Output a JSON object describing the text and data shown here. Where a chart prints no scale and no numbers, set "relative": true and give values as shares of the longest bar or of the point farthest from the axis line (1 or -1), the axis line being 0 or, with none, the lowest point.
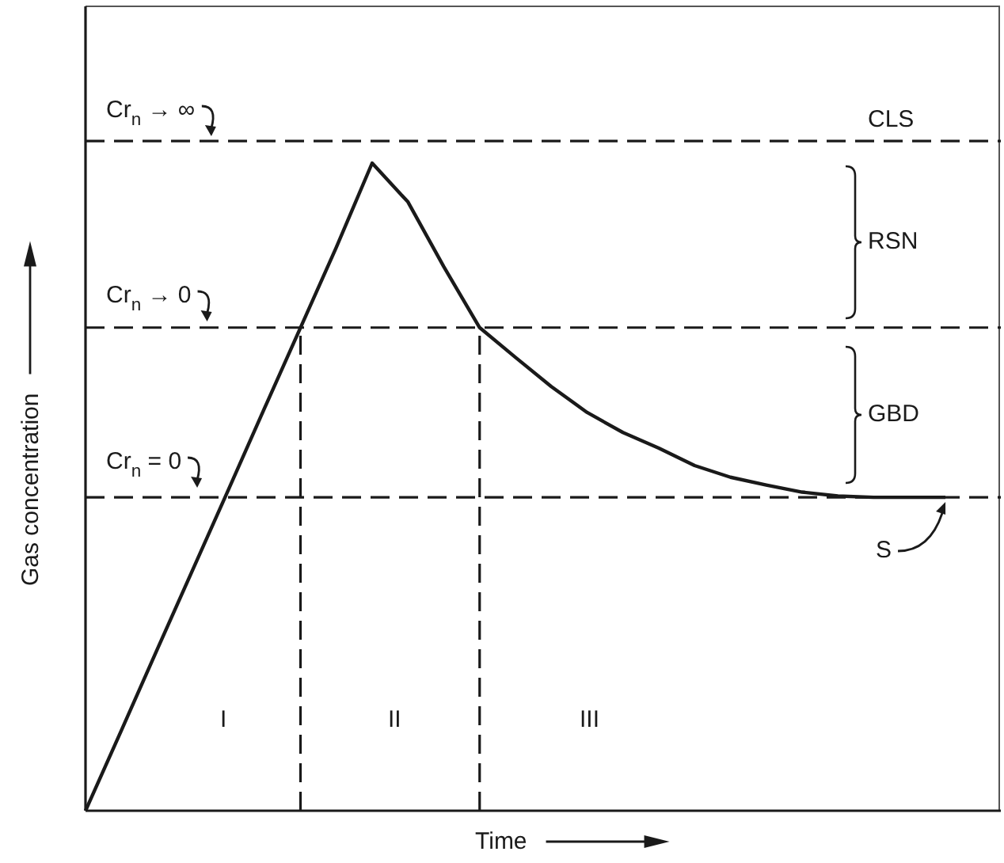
{
  "chart_data": {
    "type": "line",
    "relative": true,
    "xlabel": "Time",
    "ylabel": "Gas concentration",
    "categories": [
      null,
      null,
      null,
      null,
      null,
      null,
      null,
      null,
      null,
      null,
      null,
      null,
      null,
      null,
      null,
      null,
      null,
      null,
      null,
      null,
      null,
      null,
      null,
      null,
      null
    ],
    "series": [
      {
        "color": "#1a1a1a",
        "values": [
          0,
          0.124,
          0.249,
          0.373,
          0.497,
          0.622,
          0.746,
          0.87,
          1,
          0.94,
          0.84,
          0.746,
          0.7,
          0.655,
          0.615,
          0.584,
          0.56,
          0.533,
          0.515,
          0.503,
          0.492,
          0.486,
          0.484,
          0.484,
          0.484
        ]
      }
    ],
    "ref_lines": [
      {
        "axis": "y",
        "value": 1.034,
        "line_style": "dashed",
        "color": "#1a1a1a"
      },
      {
        "axis": "y",
        "value": 0.746,
        "line_style": "dashed",
        "color": "#1a1a1a"
      },
      {
        "axis": "y",
        "value": 0.484,
        "line_style": "dashed",
        "color": "#1a1a1a"
      }
    ],
    "annotations": [
      "Cr$_{n}$ → ∞",
      "Cr$_{n}$ → 0",
      "Cr$_{n}$ = 0",
      "CLS",
      "RSN",
      "GBD",
      "S",
      "I",
      "II",
      "III"
    ]
  }
}
